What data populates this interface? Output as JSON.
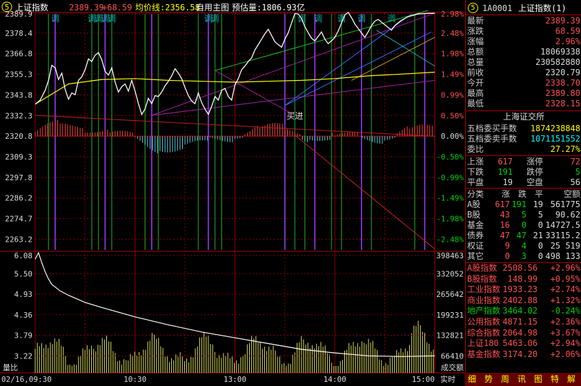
{
  "header": {
    "badge": "5",
    "index_name": "上证指数",
    "index_value": "2389.39",
    "index_change": "+68.59",
    "avg_label": "均价线:2356.58",
    "custom_label": "自用主图",
    "estimate_label": "预估量:1806.93亿"
  },
  "price_axis": {
    "left": [
      "2389.9",
      "2378.4",
      "2366.8",
      "2355.3",
      "2343.8",
      "2332.3",
      "2320.8",
      "2309.3",
      "2297.8",
      "2286.2",
      "2274.7",
      "2263.2"
    ],
    "right": [
      "2.98%",
      "2.48%",
      "1.98%",
      "1.49%",
      "0.99%",
      "0.50%",
      "0.00%",
      "-0.50%",
      "-0.99%",
      "-1.49%",
      "-1.98%",
      "-2.48%"
    ]
  },
  "volume_axis": {
    "left": [
      "6.08",
      "5.50",
      "4.93",
      "4.36",
      "3.79",
      "3.22"
    ],
    "right": [
      "398463",
      "332052",
      "265642",
      "199231",
      "132821",
      "66410"
    ],
    "left_label": "量比",
    "right_label": "成交额"
  },
  "time_axis": [
    "02/16,09:30",
    "10:30",
    "13:00",
    "14:00",
    "15:00"
  ],
  "time_mode": "实时",
  "signal_word": "调",
  "annotation": "买进",
  "chart_data": {
    "type": "line",
    "title": "上证指数",
    "x_range": [
      "09:30",
      "15:00"
    ],
    "prev_close": 2320.79,
    "ylim": [
      2257.4,
      2389.9
    ],
    "series": [
      {
        "name": "上证指数",
        "color": "#ffffff",
        "x": [
          0,
          3,
          6,
          8,
          10,
          12,
          14,
          16,
          18,
          20,
          22,
          24,
          26,
          28,
          30,
          32,
          34,
          36,
          38,
          40,
          42,
          44,
          46,
          48,
          50,
          52,
          54,
          56,
          58,
          60,
          62,
          64,
          66,
          68,
          70,
          72,
          74,
          76,
          78,
          80,
          82,
          84,
          86,
          88,
          90,
          92,
          94,
          96,
          98,
          100,
          102,
          104,
          106,
          108,
          110,
          112,
          114,
          116,
          118,
          120,
          122,
          124,
          126,
          128,
          130,
          132,
          134,
          136,
          138,
          140,
          142,
          144,
          146,
          148,
          150,
          152,
          154,
          156,
          158,
          160,
          162,
          164,
          166,
          168,
          170,
          172,
          174,
          176,
          178,
          180,
          182,
          184,
          186,
          188,
          190,
          192,
          194,
          196,
          198,
          200,
          202,
          204,
          206,
          208,
          210,
          212,
          214,
          216,
          218,
          220,
          222,
          224,
          226,
          228,
          230,
          232,
          234,
          236,
          238,
          240
        ],
        "values": [
          2338.7,
          2341.0,
          2346.5,
          2352.0,
          2360.4,
          2359.0,
          2352.5,
          2356.0,
          2347.0,
          2341.5,
          2345.0,
          2344.0,
          2352.0,
          2354.0,
          2358.0,
          2364.0,
          2362.5,
          2366.0,
          2367.5,
          2363.5,
          2357.0,
          2355.0,
          2359.0,
          2351.0,
          2345.5,
          2348.5,
          2350.0,
          2346.0,
          2352.0,
          2346.0,
          2339.0,
          2333.0,
          2336.0,
          2342.0,
          2339.0,
          2343.5,
          2343.0,
          2345.5,
          2349.0,
          2351.5,
          2354.5,
          2358.5,
          2356.0,
          2353.0,
          2348.0,
          2343.5,
          2340.5,
          2339.0,
          2345.0,
          2339.5,
          2336.0,
          2333.0,
          2337.5,
          2343.0,
          2341.0,
          2346.5,
          2347.5,
          2343.0,
          2341.0,
          2349.5,
          2353.0,
          2358.0,
          2360.0,
          2362.5,
          2364.5,
          2369.0,
          2372.0,
          2375.0,
          2378.0,
          2380.5,
          2377.0,
          2373.5,
          2372.0,
          2370.5,
          2375.0,
          2378.5,
          2384.0,
          2389.3,
          2389.0,
          2386.5,
          2382.0,
          2378.5,
          2375.5,
          2374.0,
          2376.5,
          2379.0,
          2375.0,
          2372.5,
          2374.0,
          2376.0,
          2379.5,
          2384.0,
          2388.5,
          2389.9,
          2387.0,
          2383.5,
          2381.0,
          2378.5,
          2376.0,
          2379.0,
          2382.5,
          2385.0,
          2386.0,
          2384.5,
          2383.0,
          2381.5,
          2380.0,
          2382.5,
          2384.0,
          2385.5,
          2386.5,
          2387.5,
          2388.0,
          2388.5,
          2389.0,
          2389.2,
          2389.3,
          2389.4,
          2389.39,
          2389.39
        ]
      },
      {
        "name": "均价线",
        "color": "#ffff00",
        "x": [
          0,
          20,
          40,
          60,
          80,
          100,
          120,
          140,
          160,
          180,
          200,
          220,
          240
        ],
        "values": [
          2338.7,
          2350.0,
          2352.5,
          2353.0,
          2352.0,
          2351.5,
          2351.0,
          2351.5,
          2352.0,
          2353.0,
          2354.5,
          2355.5,
          2356.58
        ]
      }
    ],
    "volume_ratio": {
      "x": [
        0,
        2,
        4,
        6,
        8,
        10,
        15,
        20,
        30,
        40,
        60,
        80,
        100,
        120,
        140,
        160,
        180,
        200,
        220,
        240
      ],
      "values": [
        5.9,
        6.08,
        5.8,
        5.55,
        5.35,
        5.2,
        5.02,
        4.9,
        4.7,
        4.56,
        4.3,
        4.08,
        3.88,
        3.72,
        3.56,
        3.4,
        3.3,
        3.22,
        3.2,
        3.22
      ]
    }
  }
}
